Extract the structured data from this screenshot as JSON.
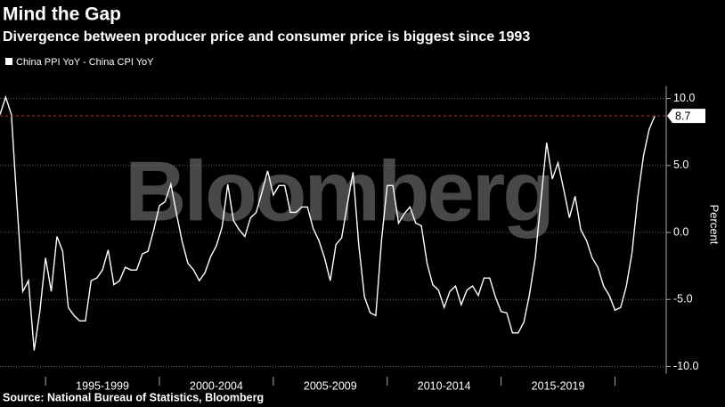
{
  "chart_data": {
    "type": "line",
    "title": "Mind the Gap",
    "subtitle": "Divergence between producer price and consumer price is biggest since 1993",
    "watermark": "Bloomberg",
    "source": "Source: National Bureau of Statistics, Bloomberg",
    "y_label": "Percent",
    "x": [
      1993,
      1993.25,
      1993.5,
      1993.75,
      1994,
      1994.25,
      1994.5,
      1994.75,
      1995,
      1995.25,
      1995.5,
      1995.75,
      1996,
      1996.25,
      1996.5,
      1996.75,
      1997,
      1997.25,
      1997.5,
      1997.75,
      1998,
      1998.25,
      1998.5,
      1998.75,
      1999,
      1999.25,
      1999.5,
      1999.75,
      2000,
      2000.25,
      2000.5,
      2000.75,
      2001,
      2001.25,
      2001.5,
      2001.75,
      2002,
      2002.25,
      2002.5,
      2002.75,
      2003,
      2003.25,
      2003.5,
      2003.75,
      2004,
      2004.25,
      2004.5,
      2004.75,
      2005,
      2005.25,
      2005.5,
      2005.75,
      2006,
      2006.25,
      2006.5,
      2006.75,
      2007,
      2007.25,
      2007.5,
      2007.75,
      2008,
      2008.25,
      2008.5,
      2008.75,
      2009,
      2009.25,
      2009.5,
      2009.75,
      2010,
      2010.25,
      2010.5,
      2010.75,
      2011,
      2011.25,
      2011.5,
      2011.75,
      2012,
      2012.25,
      2012.5,
      2012.75,
      2013,
      2013.25,
      2013.5,
      2013.75,
      2014,
      2014.25,
      2014.5,
      2014.75,
      2015,
      2015.25,
      2015.5,
      2015.75,
      2016,
      2016.25,
      2016.5,
      2016.75,
      2017,
      2017.25,
      2017.5,
      2017.75,
      2018,
      2018.25,
      2018.5,
      2018.75,
      2019,
      2019.25,
      2019.5,
      2019.75,
      2020,
      2020.25,
      2020.5,
      2020.75,
      2021,
      2021.25,
      2021.5,
      2021.75
    ],
    "series": [
      {
        "name": "China PPI YoY - China CPI YoY",
        "color": "#ffffff",
        "values": [
          8.8,
          10.1,
          8.8,
          2.0,
          -4.4,
          -3.6,
          -8.8,
          -5.9,
          -1.9,
          -4.4,
          -0.3,
          -1.4,
          -5.6,
          -6.2,
          -6.6,
          -6.6,
          -3.6,
          -3.4,
          -2.8,
          -1.3,
          -3.9,
          -3.6,
          -2.6,
          -2.8,
          -2.8,
          -1.6,
          -1.4,
          0.2,
          2.0,
          2.3,
          3.6,
          1.4,
          -0.7,
          -2.3,
          -2.8,
          -3.6,
          -3.0,
          -1.8,
          -1.0,
          0.4,
          3.6,
          0.9,
          0.2,
          -0.3,
          1.1,
          1.5,
          3.0,
          4.6,
          2.8,
          3.5,
          3.5,
          1.5,
          1.5,
          1.9,
          1.9,
          0.3,
          -0.6,
          -1.9,
          -3.6,
          -0.9,
          -0.4,
          2.1,
          4.5,
          -0.9,
          -4.8,
          -6.0,
          -6.2,
          -0.6,
          3.5,
          3.5,
          0.7,
          1.4,
          1.9,
          0.7,
          0.5,
          -2.3,
          -3.9,
          -4.3,
          -5.6,
          -4.4,
          -4.0,
          -5.4,
          -4.3,
          -4.0,
          -4.7,
          -3.4,
          -3.4,
          -4.8,
          -5.9,
          -6.0,
          -7.5,
          -7.5,
          -6.7,
          -4.6,
          -1.9,
          2.4,
          6.7,
          4.0,
          5.2,
          3.2,
          1.1,
          2.7,
          0.2,
          -0.6,
          -1.9,
          -2.6,
          -4.0,
          -4.7,
          -5.8,
          -5.6,
          -4.0,
          -1.5,
          2.6,
          5.7,
          7.7,
          8.7
        ]
      }
    ],
    "reference_line_color": "#c0282d",
    "xlim": [
      1993,
      2022.25
    ],
    "xtick_marks": [
      1995,
      2000,
      2005,
      2010,
      2015,
      2020
    ],
    "xlabels": [
      {
        "value": 1997.5,
        "label": "1995-1999"
      },
      {
        "value": 2002.5,
        "label": "2000-2004"
      },
      {
        "value": 2007.5,
        "label": "2005-2009"
      },
      {
        "value": 2012.5,
        "label": "2010-2014"
      },
      {
        "value": 2017.5,
        "label": "2015-2019"
      }
    ],
    "ylim": [
      -10.9,
      11.5
    ],
    "yticks": [
      {
        "value": 10,
        "label": "10.0"
      },
      {
        "value": 5,
        "label": "5.0"
      },
      {
        "value": 0,
        "label": "0.0"
      },
      {
        "value": -5,
        "label": "-5.0"
      },
      {
        "value": -10,
        "label": "-10.0"
      }
    ],
    "grid": true,
    "legend_position": "top-left"
  }
}
